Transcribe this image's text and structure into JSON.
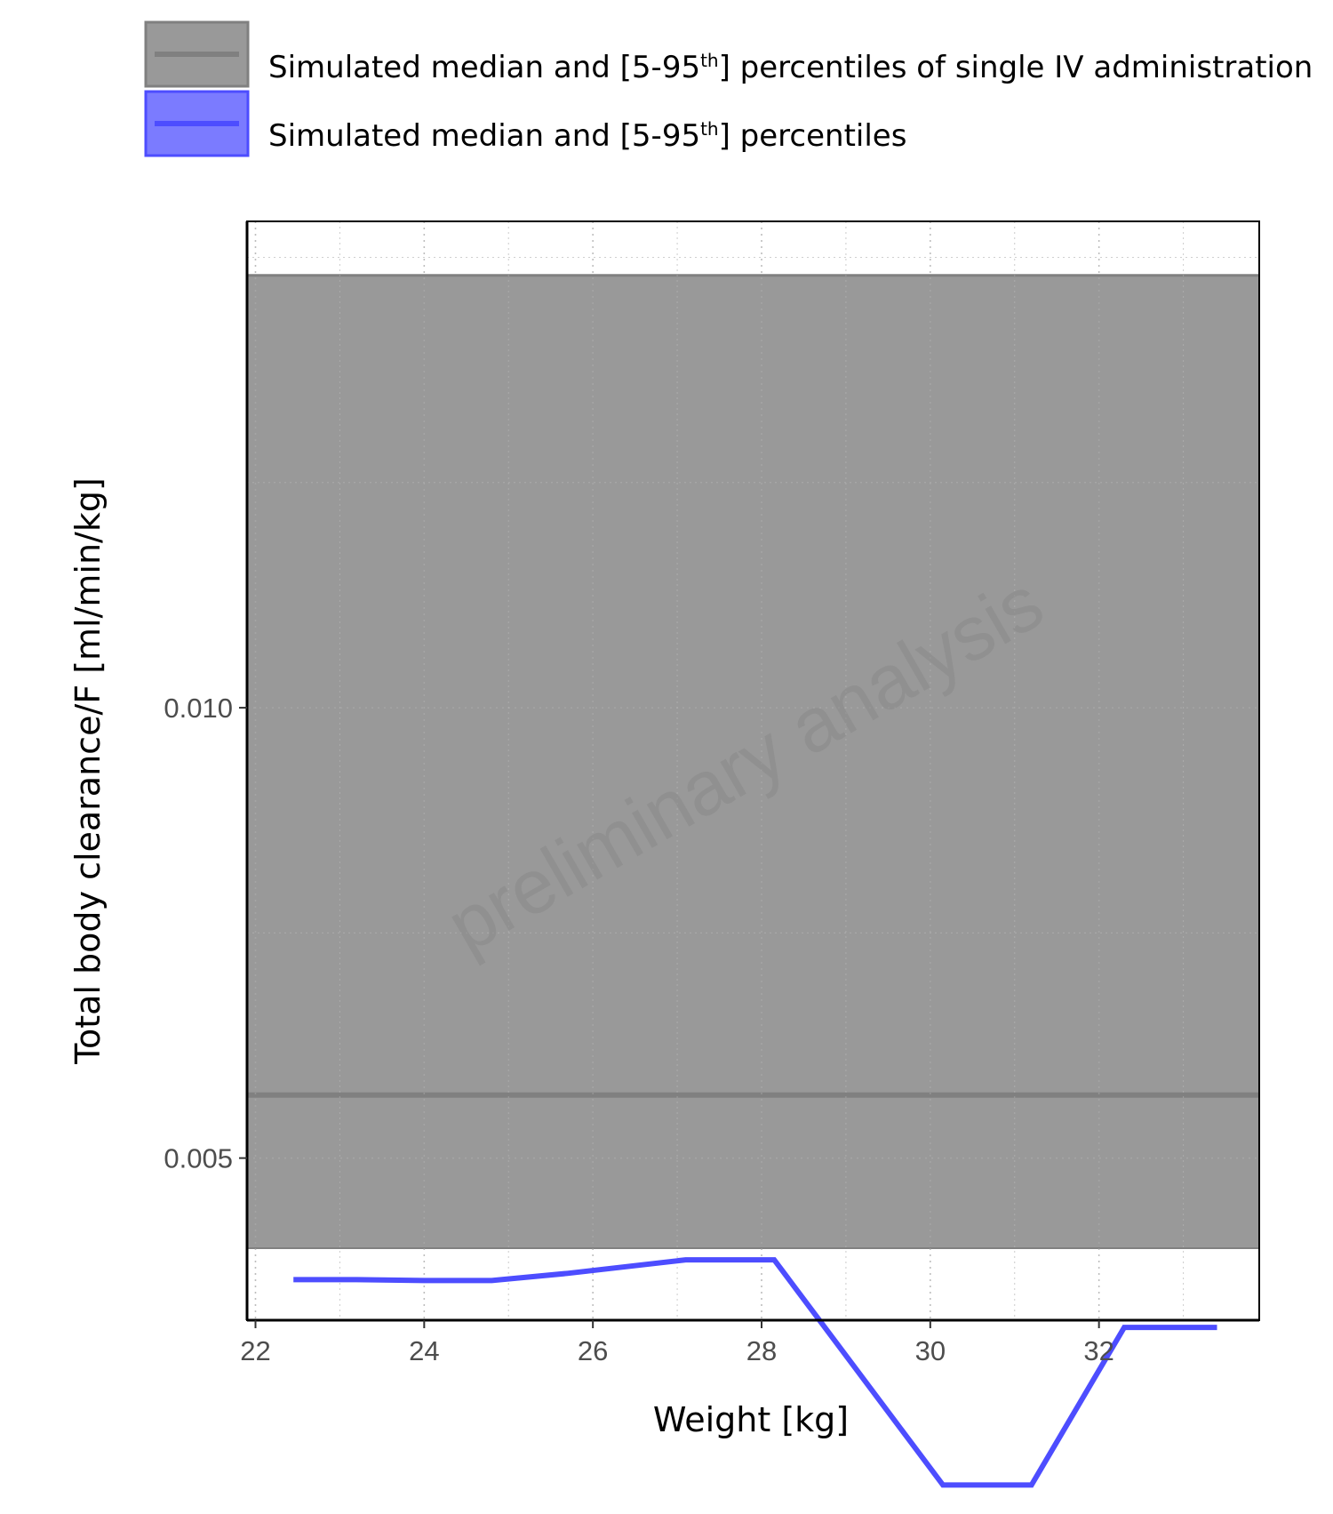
{
  "chart_data": {
    "type": "line",
    "xlabel": "Weight [kg]",
    "ylabel": "Total body clearance/F [ml/min/kg]",
    "xlim": [
      21.9,
      33.9
    ],
    "ylim": [
      0.0032,
      0.0154
    ],
    "x_ticks": [
      "22",
      "24",
      "26",
      "28",
      "30",
      "32"
    ],
    "y_ticks": [
      "0.005",
      "0.010"
    ],
    "grid": true,
    "legend_position": "top",
    "watermark": "preliminary analysis",
    "series": [
      {
        "name": "Simulated median and [5-95th] percentiles of single IV administration",
        "type": "band",
        "color": "#808080",
        "fill": "#999999",
        "median": 0.0057,
        "p5": 0.004,
        "p95": 0.0148
      },
      {
        "name": "Simulated median and [5-95th] percentiles",
        "type": "line",
        "color": "#4d4dff",
        "x": [
          22.45,
          23.2,
          24.0,
          24.8,
          25.7,
          27.1,
          28.15,
          30.15,
          31.2,
          32.3,
          33.4
        ],
        "y": [
          0.00365,
          0.00365,
          0.00364,
          0.00364,
          0.00372,
          0.00387,
          0.00387,
          0.00137,
          0.00137,
          0.00312,
          0.00312
        ]
      }
    ]
  }
}
